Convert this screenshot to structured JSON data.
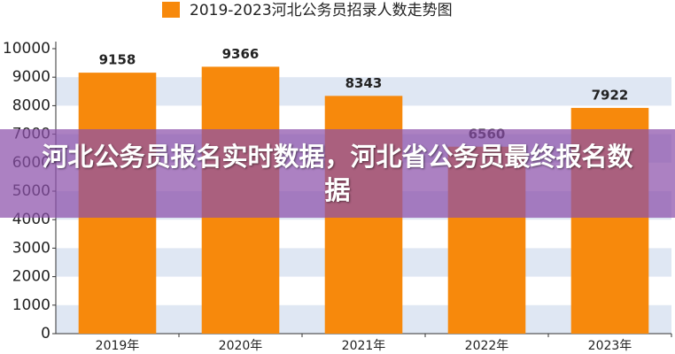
{
  "chart_data": {
    "type": "bar",
    "categories": [
      "2019年",
      "2020年",
      "2021年",
      "2022年",
      "2023年"
    ],
    "series": [
      {
        "name": "2019-2023河北公务员招录人数走势图",
        "color": "#f7890c",
        "values": [
          9158,
          9366,
          8343,
          6560,
          7922
        ]
      }
    ],
    "ylim": [
      0,
      10000
    ],
    "yticks": [
      0,
      1000,
      2000,
      3000,
      4000,
      5000,
      6000,
      7000,
      8000,
      9000,
      10000
    ],
    "grid": true,
    "legend": "top"
  },
  "overlay": {
    "text": "河北公务员报名实时数据，河北省公务员最终报名数据"
  }
}
